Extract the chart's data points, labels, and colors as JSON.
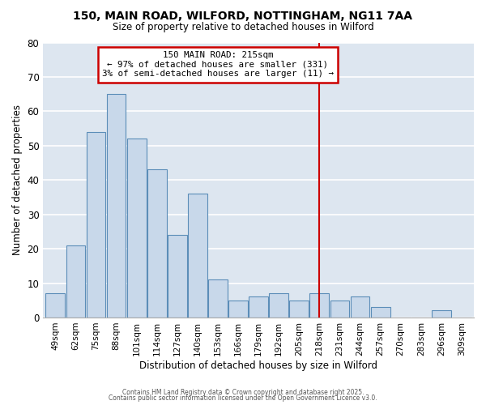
{
  "title1": "150, MAIN ROAD, WILFORD, NOTTINGHAM, NG11 7AA",
  "title2": "Size of property relative to detached houses in Wilford",
  "xlabel": "Distribution of detached houses by size in Wilford",
  "ylabel": "Number of detached properties",
  "bar_color": "#c8d8ea",
  "bar_edge_color": "#5b8db8",
  "background_color": "#dde6f0",
  "grid_color": "#ffffff",
  "vline_color": "#cc0000",
  "annotation_box_color": "#cc0000",
  "fig_background": "#ffffff",
  "categories": [
    "49sqm",
    "62sqm",
    "75sqm",
    "88sqm",
    "101sqm",
    "114sqm",
    "127sqm",
    "140sqm",
    "153sqm",
    "166sqm",
    "179sqm",
    "192sqm",
    "205sqm",
    "218sqm",
    "231sqm",
    "244sqm",
    "257sqm",
    "270sqm",
    "283sqm",
    "296sqm",
    "309sqm"
  ],
  "values": [
    7,
    21,
    54,
    65,
    52,
    43,
    24,
    36,
    11,
    5,
    6,
    7,
    5,
    7,
    5,
    6,
    3,
    0,
    0,
    2,
    0
  ],
  "ylim": [
    0,
    80
  ],
  "yticks": [
    0,
    10,
    20,
    30,
    40,
    50,
    60,
    70,
    80
  ],
  "vline_x_index": 13.0,
  "annotation_title": "150 MAIN ROAD: 215sqm",
  "annotation_line1": "← 97% of detached houses are smaller (331)",
  "annotation_line2": "3% of semi-detached houses are larger (11) →",
  "footnote1": "Contains HM Land Registry data © Crown copyright and database right 2025.",
  "footnote2": "Contains public sector information licensed under the Open Government Licence v3.0."
}
